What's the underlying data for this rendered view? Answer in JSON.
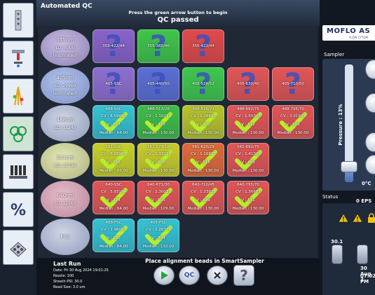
{
  "window": {
    "title": "Automated QC",
    "instruction": "Press the green arrow button to begin",
    "status": "QC passed"
  },
  "lasers": [
    {
      "name": "355nm",
      "power": "LD: 5000",
      "note": "(estimated)",
      "tone": "purple"
    },
    {
      "name": "405nm",
      "power": "LD: 29960",
      "note": "(estimated)",
      "tone": "blue"
    },
    {
      "name": "488nm",
      "power": "LD: 11240",
      "note": "",
      "tone": "cyan"
    },
    {
      "name": "561nm",
      "power": "LD: 23730",
      "note": "",
      "tone": "yellow"
    },
    {
      "name": "640nm",
      "power": "LD: 12560",
      "note": "",
      "tone": "pink"
    },
    {
      "name": "FSC",
      "power": "",
      "note": "",
      "tone": "cyan"
    }
  ],
  "tiles": [
    [
      {
        "name": "355-422/44",
        "status": "unknown",
        "color": "#8a63c9"
      },
      {
        "name": "355-385/40",
        "status": "unknown",
        "color": "#3fc64a"
      },
      {
        "name": "355-422/44",
        "status": "unknown",
        "color": "#e24a4a"
      }
    ],
    [
      {
        "name": "405-SSC",
        "status": "unknown",
        "color": "#8e6fd0"
      },
      {
        "name": "405-440/50",
        "status": "unknown",
        "color": "#5b6fd6"
      },
      {
        "name": "405-526/52",
        "status": "unknown",
        "color": "#3fc84e"
      },
      {
        "name": "405-630/40",
        "status": "unknown",
        "color": "#e25656"
      },
      {
        "name": "405-710/50",
        "status": "unknown",
        "color": "#e25656"
      }
    ],
    [
      {
        "name": "488-SSC",
        "cv": "CV : 6.59480",
        "v": "V : 357",
        "median": "Median : 64.00",
        "status": "pass",
        "color": "#35c3d3"
      },
      {
        "name": "488-513/26",
        "cv": "CV : 1.10231",
        "v": "V : 395",
        "median": "Median : 130.00",
        "status": "pass",
        "color": "#3fbe4a"
      },
      {
        "name": "488-526/71",
        "cv": "CV : 1.28497",
        "v": "V : 502",
        "median": "Median : 130.00",
        "status": "pass",
        "color": "#b8c42c"
      },
      {
        "name": "488-692/75",
        "cv": "CV : 1.65306",
        "v": "V : 512",
        "median": "Median : 130.00",
        "status": "pass",
        "color": "#e25656"
      },
      {
        "name": "488-795/70",
        "cv": "CV : 3.01938",
        "v": "V : 666",
        "median": "Median : 130.00",
        "status": "pass",
        "color": "#e25656"
      }
    ],
    [
      {
        "name": "561-SSC",
        "cv": "CV : 6.08967",
        "v": "V : 355",
        "median": "Median : 65.00",
        "status": "pass",
        "color": "#c7d12a"
      },
      {
        "name": "561-579/16",
        "cv": "CV : 1.32019",
        "v": "V : 501",
        "median": "Median : 130.00",
        "status": "pass",
        "color": "#c9cc2c"
      },
      {
        "name": "561-620/29",
        "cv": "CV : 1.16877",
        "v": "V : 516",
        "median": "Median : 130.00",
        "status": "pass",
        "color": "#e06a3a"
      },
      {
        "name": "561-692/75",
        "cv": "CV : 1.41326",
        "v": "V : 489",
        "median": "Median : 130.00",
        "status": "pass",
        "color": "#e25656"
      }
    ],
    [
      {
        "name": "640-SSC",
        "cv": "CV : 5.93164",
        "v": "V : 274",
        "median": "Median : 64.00",
        "status": "pass",
        "color": "#e25656"
      },
      {
        "name": "640-671/30",
        "cv": "CV : 1.30031",
        "v": "V : 505",
        "median": "Median : 129.00",
        "status": "pass",
        "color": "#e25656"
      },
      {
        "name": "640-710/45",
        "cv": "CV : 1.33829",
        "v": "V : 489",
        "median": "Median : 130.00",
        "status": "pass",
        "color": "#e25656"
      },
      {
        "name": "640-795/70",
        "cv": "CV : 1.36681",
        "v": "V : 531",
        "median": "Median : 130.00",
        "status": "pass",
        "color": "#e25656"
      }
    ],
    [
      {
        "name": "488-FSC",
        "cv": "CV : 2.96001",
        "v": "V : 290",
        "median": "Median : 64.00",
        "status": "pass",
        "color": "#35c3d3"
      },
      {
        "name": "405-FSC",
        "cv": "CV : 2.26378",
        "v": "V : 304",
        "median": "Median : 132.00",
        "status": "pass",
        "color": "#35c3d3"
      }
    ]
  ],
  "last_run": {
    "title": "Last Run",
    "date": "Date: Fri 30 Aug 2024  19:01:25",
    "nozzle": "Nozzle: 100",
    "sheath": "Sheath PSI: 30.0",
    "bead": "Bead Size: 3.0 um"
  },
  "bottom_message": "Place alignment beads in SmartSampler",
  "buttons": {
    "play": "play",
    "qc": "QC",
    "stop": "stop",
    "help": "?"
  },
  "right_panel": {
    "logo": "MOFLO AS",
    "logo_sub": "FLOW CYTOM",
    "sampler_title": "Sampler",
    "pressure_label": "Pressure : 13%",
    "pressure_percent": 13,
    "temperature": "0°C",
    "status_title": "Status",
    "eps": "0 EPS",
    "volume": "30.1",
    "date": "30 Aug 2",
    "time": "07:02 PM"
  }
}
